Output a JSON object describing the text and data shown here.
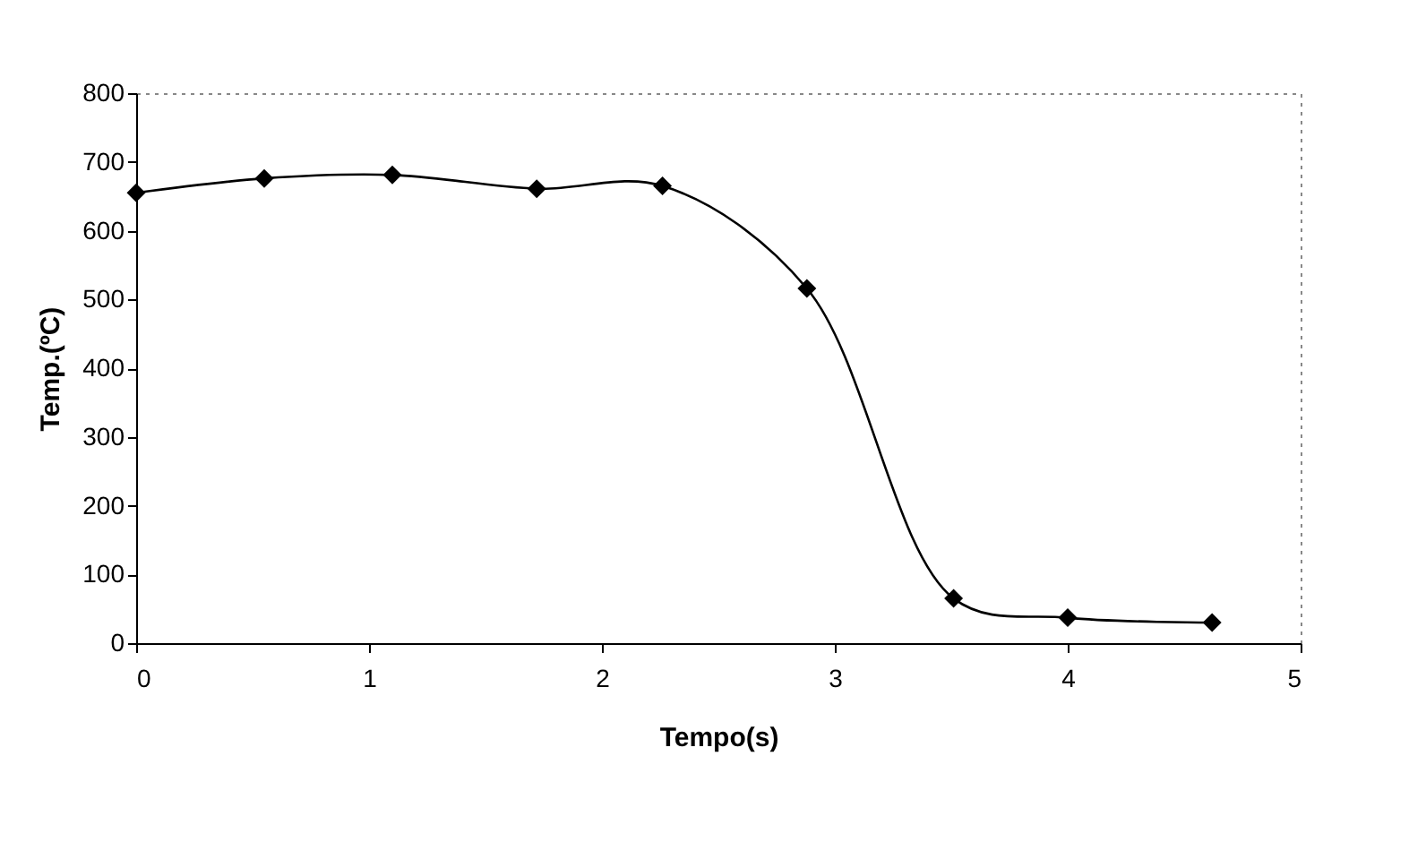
{
  "chart_data": {
    "type": "line",
    "xlabel": "Tempo(s)",
    "ylabel": "Temp.(ºC)",
    "x": [
      0,
      0.55,
      1.1,
      1.72,
      2.26,
      2.88,
      3.51,
      4.0,
      4.62
    ],
    "series": [
      {
        "color": "#000000",
        "values": [
          655,
          676,
          681,
          661,
          665,
          516,
          65,
          37,
          30
        ]
      }
    ],
    "xlim": [
      0,
      5
    ],
    "xticks": [
      0,
      1,
      2,
      3,
      4,
      5
    ],
    "ylim": [
      0,
      800
    ],
    "yticks": [
      0,
      100,
      200,
      300,
      400,
      500,
      600,
      700,
      800
    ],
    "marker": "diamond",
    "line_style": "solid",
    "grid": false,
    "legend": false
  }
}
